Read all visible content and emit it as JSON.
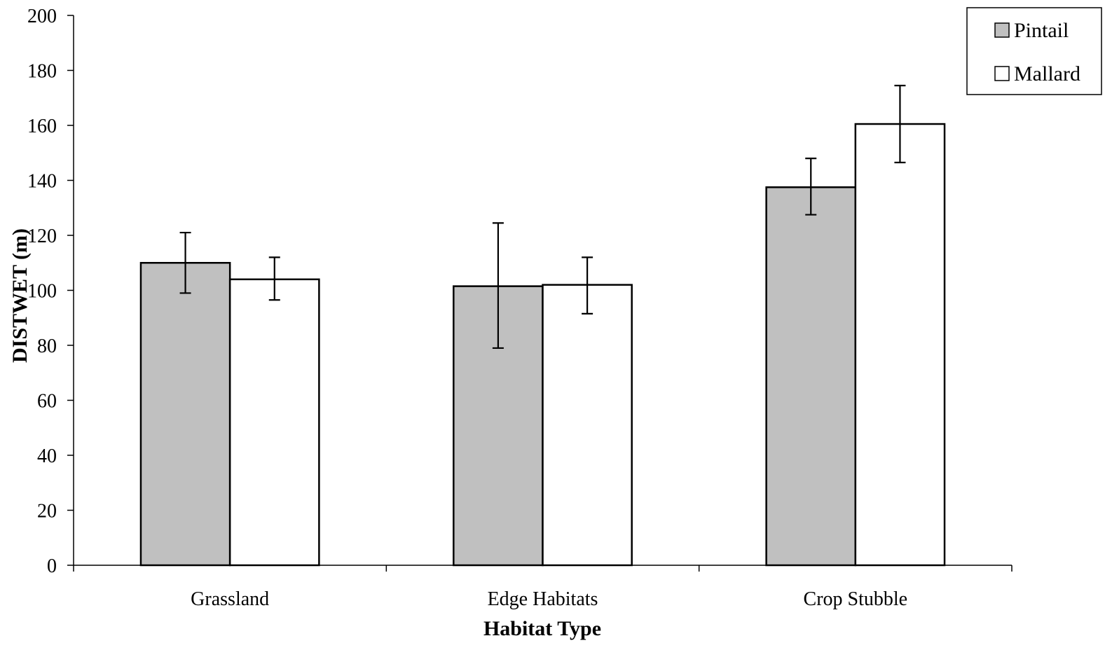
{
  "chart_data": {
    "type": "bar",
    "title": "",
    "xlabel": "Habitat Type",
    "ylabel": "DISTWET (m)",
    "categories": [
      "Grassland",
      "Edge Habitats",
      "Crop Stubble"
    ],
    "series": [
      {
        "name": "Pintail",
        "color": "#c0c0c0",
        "values": [
          110,
          101.5,
          137.5
        ],
        "error_low": [
          99,
          79,
          127.5
        ],
        "error_high": [
          121,
          124.5,
          148
        ]
      },
      {
        "name": "Mallard",
        "color": "#ffffff",
        "values": [
          104,
          102,
          160.5
        ],
        "error_low": [
          96.5,
          91.5,
          146.5
        ],
        "error_high": [
          112,
          112,
          174.5
        ]
      }
    ],
    "ylim": [
      0,
      200
    ],
    "yticks": [
      "0",
      "20",
      "40",
      "60",
      "80",
      "100",
      "120",
      "140",
      "160",
      "180",
      "200"
    ],
    "grid": false,
    "legend_position": "top-right"
  }
}
